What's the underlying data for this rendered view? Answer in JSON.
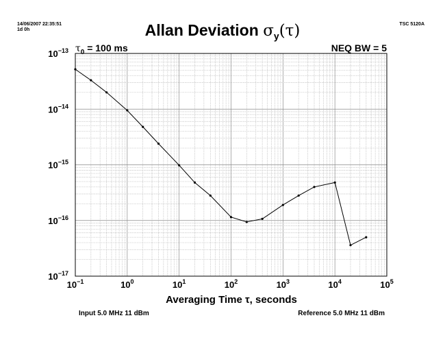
{
  "header": {
    "timestamp": "14/06/2007 22:35:51",
    "duration": "1d 0h",
    "instrument": "TSC 5120A",
    "title_main": "Allan Deviation ",
    "title_sigma": "σ",
    "title_sub": "y",
    "title_arg": "(τ)"
  },
  "annotations": {
    "tau_symbol": "τ",
    "tau_sub": "0",
    "tau_value": " = 100 ms",
    "neq_bw": "NEQ BW = 5"
  },
  "footer": {
    "input": "Input 5.0 MHz 11 dBm",
    "reference": "Reference 5.0 MHz 11 dBm"
  },
  "chart_data": {
    "type": "line",
    "title": "Allan Deviation σy(τ)",
    "xlabel": "Averaging Time τ, seconds",
    "ylabel": "",
    "xscale": "log",
    "yscale": "log",
    "xlim": [
      0.1,
      100000
    ],
    "ylim": [
      1e-17,
      1e-13
    ],
    "grid": true,
    "x_ticks": [
      {
        "base": "10",
        "exp": "−1"
      },
      {
        "base": "10",
        "exp": "0"
      },
      {
        "base": "10",
        "exp": "1"
      },
      {
        "base": "10",
        "exp": "2"
      },
      {
        "base": "10",
        "exp": "3"
      },
      {
        "base": "10",
        "exp": "4"
      },
      {
        "base": "10",
        "exp": "5"
      }
    ],
    "y_ticks": [
      {
        "base": "10",
        "exp": "−13"
      },
      {
        "base": "10",
        "exp": "−14"
      },
      {
        "base": "10",
        "exp": "−15"
      },
      {
        "base": "10",
        "exp": "−16"
      },
      {
        "base": "10",
        "exp": "−17"
      }
    ],
    "x": [
      0.1,
      0.2,
      0.4,
      1,
      2,
      4,
      10,
      20,
      40,
      100,
      200,
      400,
      1000,
      2000,
      4000,
      10000,
      20000,
      40000
    ],
    "y": [
      5.2e-14,
      3.3e-14,
      2e-14,
      9.5e-15,
      4.8e-15,
      2.4e-15,
      9.8e-16,
      4.8e-16,
      2.8e-16,
      1.15e-16,
      9.4e-17,
      1.07e-16,
      1.9e-16,
      2.8e-16,
      4e-16,
      4.8e-16,
      3.6e-17,
      5e-17
    ]
  }
}
